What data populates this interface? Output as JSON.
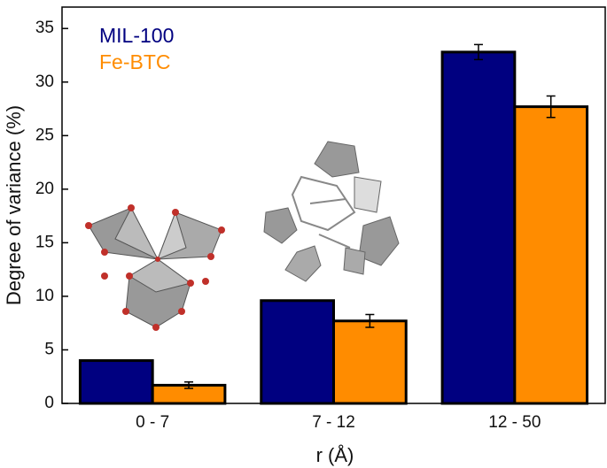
{
  "chart_data": {
    "type": "bar",
    "categories": [
      "0 - 7",
      "7 - 12",
      "12 - 50"
    ],
    "series": [
      {
        "name": "MIL-100",
        "color": "#000080",
        "values": [
          4.0,
          9.6,
          32.8
        ],
        "errors": [
          null,
          null,
          0.7
        ]
      },
      {
        "name": "Fe-BTC",
        "color": "#ff8c00",
        "values": [
          1.7,
          7.7,
          27.7
        ],
        "errors": [
          0.3,
          0.6,
          1.0
        ]
      }
    ],
    "x_label": "r (Å)",
    "y_label": "Degree of variance (%)",
    "ylim": [
      0,
      37
    ],
    "yticks": [
      0,
      5,
      10,
      15,
      20,
      25,
      30,
      35
    ],
    "legend": "upper-left"
  }
}
